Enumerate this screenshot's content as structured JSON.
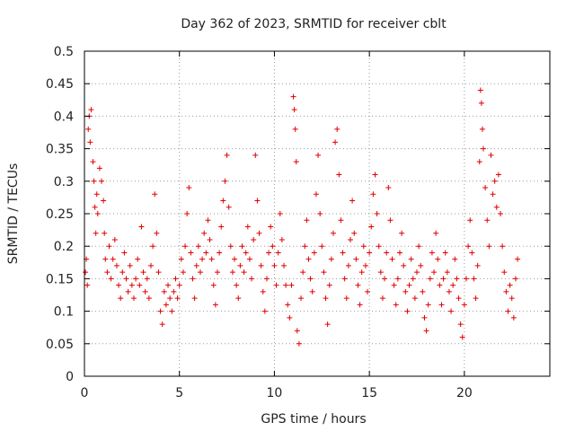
{
  "chart_data": {
    "type": "scatter",
    "title": "Day 362 of 2023, SRMTID for receiver cblt",
    "xlabel": "GPS time / hours",
    "ylabel": "SRMTID / TECUs",
    "xlim": [
      0,
      24.5
    ],
    "ylim": [
      0,
      0.5
    ],
    "x_ticks": [
      0,
      5,
      10,
      15,
      20
    ],
    "x_tick_labels": [
      "0",
      "5",
      "10",
      "15",
      "20"
    ],
    "y_ticks": [
      0,
      0.05,
      0.1,
      0.15,
      0.2,
      0.25,
      0.3,
      0.35,
      0.4,
      0.45,
      0.5
    ],
    "y_tick_labels": [
      "0",
      "0.05",
      "0.1",
      "0.15",
      "0.2",
      "0.25",
      "0.3",
      "0.35",
      "0.4",
      "0.45",
      "0.5"
    ],
    "grid": true,
    "marker": "plus",
    "color": "#e00000",
    "series": [
      {
        "name": "",
        "points": [
          [
            0.05,
            0.16
          ],
          [
            0.1,
            0.18
          ],
          [
            0.15,
            0.14
          ],
          [
            0.2,
            0.38
          ],
          [
            0.25,
            0.4
          ],
          [
            0.3,
            0.36
          ],
          [
            0.35,
            0.41
          ],
          [
            0.45,
            0.33
          ],
          [
            0.5,
            0.3
          ],
          [
            0.55,
            0.26
          ],
          [
            0.6,
            0.22
          ],
          [
            0.65,
            0.28
          ],
          [
            0.7,
            0.25
          ],
          [
            0.8,
            0.32
          ],
          [
            0.9,
            0.3
          ],
          [
            1.0,
            0.27
          ],
          [
            1.05,
            0.22
          ],
          [
            1.1,
            0.18
          ],
          [
            1.2,
            0.16
          ],
          [
            1.3,
            0.2
          ],
          [
            1.4,
            0.15
          ],
          [
            1.5,
            0.18
          ],
          [
            1.6,
            0.21
          ],
          [
            1.7,
            0.17
          ],
          [
            1.8,
            0.14
          ],
          [
            1.9,
            0.12
          ],
          [
            2.0,
            0.16
          ],
          [
            2.1,
            0.19
          ],
          [
            2.2,
            0.15
          ],
          [
            2.3,
            0.13
          ],
          [
            2.4,
            0.17
          ],
          [
            2.5,
            0.14
          ],
          [
            2.6,
            0.12
          ],
          [
            2.7,
            0.15
          ],
          [
            2.8,
            0.18
          ],
          [
            2.9,
            0.14
          ],
          [
            3.0,
            0.23
          ],
          [
            3.1,
            0.16
          ],
          [
            3.2,
            0.13
          ],
          [
            3.3,
            0.15
          ],
          [
            3.4,
            0.12
          ],
          [
            3.5,
            0.17
          ],
          [
            3.6,
            0.2
          ],
          [
            3.7,
            0.28
          ],
          [
            3.8,
            0.22
          ],
          [
            3.9,
            0.16
          ],
          [
            4.0,
            0.1
          ],
          [
            4.1,
            0.08
          ],
          [
            4.2,
            0.13
          ],
          [
            4.3,
            0.11
          ],
          [
            4.4,
            0.14
          ],
          [
            4.5,
            0.12
          ],
          [
            4.6,
            0.1
          ],
          [
            4.7,
            0.13
          ],
          [
            4.8,
            0.15
          ],
          [
            4.9,
            0.12
          ],
          [
            5.0,
            0.14
          ],
          [
            5.1,
            0.18
          ],
          [
            5.2,
            0.16
          ],
          [
            5.3,
            0.2
          ],
          [
            5.4,
            0.25
          ],
          [
            5.5,
            0.29
          ],
          [
            5.6,
            0.19
          ],
          [
            5.7,
            0.15
          ],
          [
            5.8,
            0.12
          ],
          [
            5.9,
            0.17
          ],
          [
            6.0,
            0.2
          ],
          [
            6.1,
            0.16
          ],
          [
            6.2,
            0.18
          ],
          [
            6.3,
            0.22
          ],
          [
            6.4,
            0.19
          ],
          [
            6.5,
            0.24
          ],
          [
            6.6,
            0.21
          ],
          [
            6.7,
            0.18
          ],
          [
            6.8,
            0.14
          ],
          [
            6.9,
            0.11
          ],
          [
            7.0,
            0.16
          ],
          [
            7.1,
            0.19
          ],
          [
            7.2,
            0.23
          ],
          [
            7.3,
            0.27
          ],
          [
            7.4,
            0.3
          ],
          [
            7.5,
            0.34
          ],
          [
            7.6,
            0.26
          ],
          [
            7.7,
            0.2
          ],
          [
            7.8,
            0.16
          ],
          [
            7.9,
            0.18
          ],
          [
            8.0,
            0.14
          ],
          [
            8.1,
            0.12
          ],
          [
            8.2,
            0.17
          ],
          [
            8.3,
            0.2
          ],
          [
            8.4,
            0.16
          ],
          [
            8.5,
            0.19
          ],
          [
            8.6,
            0.23
          ],
          [
            8.7,
            0.18
          ],
          [
            8.8,
            0.15
          ],
          [
            8.9,
            0.21
          ],
          [
            9.0,
            0.34
          ],
          [
            9.1,
            0.27
          ],
          [
            9.2,
            0.22
          ],
          [
            9.3,
            0.17
          ],
          [
            9.4,
            0.13
          ],
          [
            9.5,
            0.1
          ],
          [
            9.6,
            0.15
          ],
          [
            9.7,
            0.19
          ],
          [
            9.8,
            0.23
          ],
          [
            9.9,
            0.2
          ],
          [
            10.0,
            0.17
          ],
          [
            10.1,
            0.14
          ],
          [
            10.2,
            0.19
          ],
          [
            10.3,
            0.25
          ],
          [
            10.4,
            0.21
          ],
          [
            10.5,
            0.17
          ],
          [
            10.6,
            0.14
          ],
          [
            10.7,
            0.11
          ],
          [
            10.8,
            0.09
          ],
          [
            10.9,
            0.14
          ],
          [
            11.0,
            0.43
          ],
          [
            11.05,
            0.41
          ],
          [
            11.1,
            0.38
          ],
          [
            11.15,
            0.33
          ],
          [
            11.2,
            0.07
          ],
          [
            11.3,
            0.05
          ],
          [
            11.4,
            0.12
          ],
          [
            11.5,
            0.16
          ],
          [
            11.6,
            0.2
          ],
          [
            11.7,
            0.24
          ],
          [
            11.8,
            0.18
          ],
          [
            11.9,
            0.15
          ],
          [
            12.0,
            0.13
          ],
          [
            12.1,
            0.19
          ],
          [
            12.2,
            0.28
          ],
          [
            12.3,
            0.34
          ],
          [
            12.4,
            0.25
          ],
          [
            12.5,
            0.2
          ],
          [
            12.6,
            0.16
          ],
          [
            12.7,
            0.12
          ],
          [
            12.8,
            0.08
          ],
          [
            12.9,
            0.14
          ],
          [
            13.0,
            0.18
          ],
          [
            13.1,
            0.22
          ],
          [
            13.2,
            0.36
          ],
          [
            13.3,
            0.38
          ],
          [
            13.4,
            0.31
          ],
          [
            13.5,
            0.24
          ],
          [
            13.6,
            0.19
          ],
          [
            13.7,
            0.15
          ],
          [
            13.8,
            0.12
          ],
          [
            13.9,
            0.17
          ],
          [
            14.0,
            0.21
          ],
          [
            14.1,
            0.27
          ],
          [
            14.2,
            0.22
          ],
          [
            14.3,
            0.18
          ],
          [
            14.4,
            0.14
          ],
          [
            14.5,
            0.11
          ],
          [
            14.6,
            0.16
          ],
          [
            14.7,
            0.2
          ],
          [
            14.8,
            0.17
          ],
          [
            14.9,
            0.13
          ],
          [
            15.0,
            0.19
          ],
          [
            15.1,
            0.23
          ],
          [
            15.2,
            0.28
          ],
          [
            15.3,
            0.31
          ],
          [
            15.4,
            0.25
          ],
          [
            15.5,
            0.2
          ],
          [
            15.6,
            0.16
          ],
          [
            15.7,
            0.12
          ],
          [
            15.8,
            0.15
          ],
          [
            15.9,
            0.19
          ],
          [
            16.0,
            0.29
          ],
          [
            16.1,
            0.24
          ],
          [
            16.2,
            0.18
          ],
          [
            16.3,
            0.14
          ],
          [
            16.4,
            0.11
          ],
          [
            16.5,
            0.15
          ],
          [
            16.6,
            0.19
          ],
          [
            16.7,
            0.22
          ],
          [
            16.8,
            0.17
          ],
          [
            16.9,
            0.13
          ],
          [
            17.0,
            0.1
          ],
          [
            17.1,
            0.14
          ],
          [
            17.2,
            0.18
          ],
          [
            17.3,
            0.15
          ],
          [
            17.4,
            0.12
          ],
          [
            17.5,
            0.16
          ],
          [
            17.6,
            0.2
          ],
          [
            17.7,
            0.17
          ],
          [
            17.8,
            0.13
          ],
          [
            17.9,
            0.09
          ],
          [
            18.0,
            0.07
          ],
          [
            18.1,
            0.11
          ],
          [
            18.2,
            0.15
          ],
          [
            18.3,
            0.19
          ],
          [
            18.4,
            0.16
          ],
          [
            18.5,
            0.22
          ],
          [
            18.6,
            0.18
          ],
          [
            18.7,
            0.14
          ],
          [
            18.8,
            0.11
          ],
          [
            18.9,
            0.15
          ],
          [
            19.0,
            0.19
          ],
          [
            19.1,
            0.16
          ],
          [
            19.2,
            0.13
          ],
          [
            19.3,
            0.1
          ],
          [
            19.4,
            0.14
          ],
          [
            19.5,
            0.18
          ],
          [
            19.6,
            0.15
          ],
          [
            19.7,
            0.12
          ],
          [
            19.8,
            0.08
          ],
          [
            19.9,
            0.06
          ],
          [
            20.0,
            0.11
          ],
          [
            20.1,
            0.15
          ],
          [
            20.2,
            0.2
          ],
          [
            20.3,
            0.24
          ],
          [
            20.4,
            0.19
          ],
          [
            20.5,
            0.15
          ],
          [
            20.6,
            0.12
          ],
          [
            20.7,
            0.17
          ],
          [
            20.8,
            0.33
          ],
          [
            20.85,
            0.44
          ],
          [
            20.9,
            0.42
          ],
          [
            20.95,
            0.38
          ],
          [
            21.0,
            0.35
          ],
          [
            21.1,
            0.29
          ],
          [
            21.2,
            0.24
          ],
          [
            21.3,
            0.2
          ],
          [
            21.4,
            0.34
          ],
          [
            21.5,
            0.28
          ],
          [
            21.6,
            0.3
          ],
          [
            21.7,
            0.26
          ],
          [
            21.8,
            0.31
          ],
          [
            21.9,
            0.25
          ],
          [
            22.0,
            0.2
          ],
          [
            22.1,
            0.16
          ],
          [
            22.2,
            0.13
          ],
          [
            22.3,
            0.1
          ],
          [
            22.4,
            0.14
          ],
          [
            22.5,
            0.12
          ],
          [
            22.6,
            0.09
          ],
          [
            22.7,
            0.15
          ],
          [
            22.8,
            0.18
          ]
        ]
      }
    ]
  }
}
